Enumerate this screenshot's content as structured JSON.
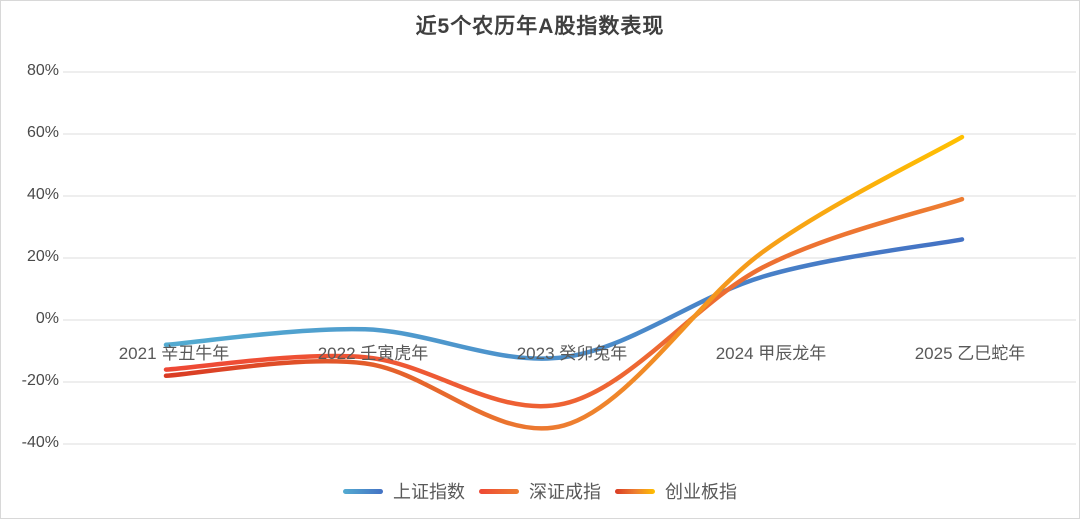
{
  "title": "近5个农历年A股指数表现",
  "chart_data": {
    "type": "line",
    "smooth": true,
    "title": "近5个农历年A股指数表现",
    "categories": [
      "2021 辛丑牛年",
      "2022 壬寅虎年",
      "2023 癸卯兔年",
      "2024 甲辰龙年",
      "2025 乙巳蛇年"
    ],
    "series": [
      {
        "name": "上证指数",
        "values": [
          -8,
          -3,
          -12,
          14,
          26
        ],
        "gradient": [
          "#53ABD1",
          "#4472C4"
        ]
      },
      {
        "name": "深证成指",
        "values": [
          -16,
          -12,
          -27,
          17,
          39
        ],
        "gradient": [
          "#EE4835",
          "#ED7D31"
        ]
      },
      {
        "name": "创业板指",
        "values": [
          -18,
          -14,
          -34,
          22,
          59
        ],
        "gradient": [
          "#D93B24",
          "#ED7D31",
          "#FFC000"
        ]
      }
    ],
    "xlabel": "",
    "ylabel": "",
    "y_ticks": [
      {
        "label": "80%",
        "value": 80
      },
      {
        "label": "60%",
        "value": 60
      },
      {
        "label": "40%",
        "value": 40
      },
      {
        "label": "20%",
        "value": 20
      },
      {
        "label": "0%",
        "value": 0
      },
      {
        "label": "-20%",
        "value": -20
      },
      {
        "label": "-40%",
        "value": -40
      }
    ],
    "ylim": [
      -40,
      80
    ],
    "grid": true,
    "gridline_color": "#DCDCDC",
    "legend_position": "bottom"
  }
}
